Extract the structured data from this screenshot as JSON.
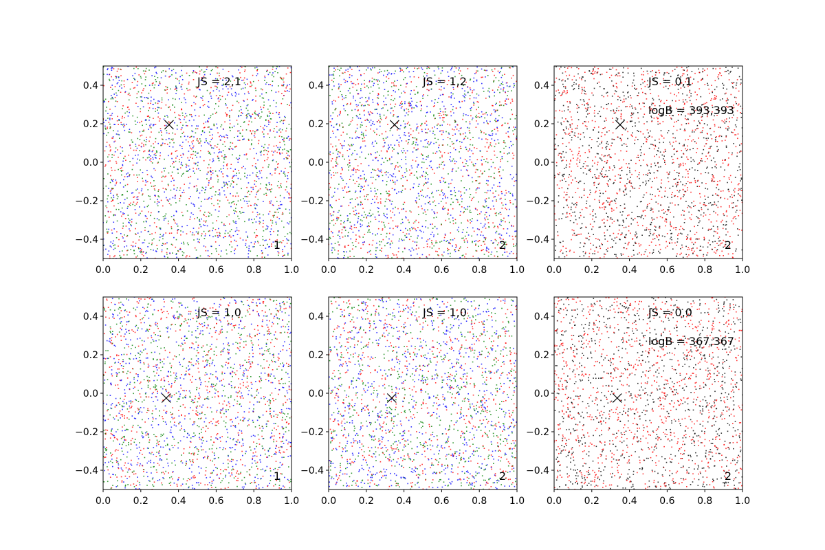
{
  "colors": {
    "blue": "#0000ff",
    "green": "#008000",
    "red": "#ff0000",
    "black": "#000000"
  },
  "chart_data": [
    {
      "type": "scatter",
      "xlim": [
        0,
        1
      ],
      "ylim": [
        -0.5,
        0.5
      ],
      "x_ticks": [
        "0.0",
        "0.2",
        "0.4",
        "0.6",
        "0.8",
        "1.0"
      ],
      "y_ticks": [
        "-0.4",
        "-0.2",
        "0.0",
        "0.2",
        "0.4"
      ],
      "text_js": "JS = 2,1",
      "text_logb": "",
      "corner_label": "1",
      "marker": {
        "x": 0.35,
        "y": 0.195
      },
      "point_colors": [
        "blue",
        "green",
        "red"
      ],
      "point_count": 2200,
      "seed": 11
    },
    {
      "type": "scatter",
      "xlim": [
        0,
        1
      ],
      "ylim": [
        -0.5,
        0.5
      ],
      "x_ticks": [
        "0.0",
        "0.2",
        "0.4",
        "0.6",
        "0.8",
        "1.0"
      ],
      "y_ticks": [
        "-0.4",
        "-0.2",
        "0.0",
        "0.2",
        "0.4"
      ],
      "text_js": "JS = 1,2",
      "text_logb": "",
      "corner_label": "2",
      "marker": {
        "x": 0.35,
        "y": 0.195
      },
      "point_colors": [
        "blue",
        "green",
        "red"
      ],
      "point_count": 2200,
      "seed": 23
    },
    {
      "type": "scatter",
      "xlim": [
        0,
        1
      ],
      "ylim": [
        -0.5,
        0.5
      ],
      "x_ticks": [
        "0.0",
        "0.2",
        "0.4",
        "0.6",
        "0.8",
        "1.0"
      ],
      "y_ticks": [
        "-0.4",
        "-0.2",
        "0.0",
        "0.2",
        "0.4"
      ],
      "text_js": "JS = 0,1",
      "text_logb": "logB = 393,393",
      "corner_label": "2",
      "marker": {
        "x": 0.35,
        "y": 0.195
      },
      "point_colors": [
        "red",
        "black"
      ],
      "point_count": 2000,
      "seed": 37
    },
    {
      "type": "scatter",
      "xlim": [
        0,
        1
      ],
      "ylim": [
        -0.5,
        0.5
      ],
      "x_ticks": [
        "0.0",
        "0.2",
        "0.4",
        "0.6",
        "0.8",
        "1.0"
      ],
      "y_ticks": [
        "-0.4",
        "-0.2",
        "0.0",
        "0.2",
        "0.4"
      ],
      "text_js": "JS = 1,0",
      "text_logb": "",
      "corner_label": "1",
      "marker": {
        "x": 0.335,
        "y": -0.025
      },
      "point_colors": [
        "blue",
        "green",
        "red"
      ],
      "point_count": 2200,
      "seed": 41
    },
    {
      "type": "scatter",
      "xlim": [
        0,
        1
      ],
      "ylim": [
        -0.5,
        0.5
      ],
      "x_ticks": [
        "0.0",
        "0.2",
        "0.4",
        "0.6",
        "0.8",
        "1.0"
      ],
      "y_ticks": [
        "-0.4",
        "-0.2",
        "0.0",
        "0.2",
        "0.4"
      ],
      "text_js": "JS = 1,0",
      "text_logb": "",
      "corner_label": "2",
      "marker": {
        "x": 0.335,
        "y": -0.025
      },
      "point_colors": [
        "blue",
        "green",
        "red"
      ],
      "point_count": 2200,
      "seed": 53
    },
    {
      "type": "scatter",
      "xlim": [
        0,
        1
      ],
      "ylim": [
        -0.5,
        0.5
      ],
      "x_ticks": [
        "0.0",
        "0.2",
        "0.4",
        "0.6",
        "0.8",
        "1.0"
      ],
      "y_ticks": [
        "-0.4",
        "-0.2",
        "0.0",
        "0.2",
        "0.4"
      ],
      "text_js": "JS = 0,0",
      "text_logb": "logB = 367,367",
      "corner_label": "2",
      "marker": {
        "x": 0.335,
        "y": -0.025
      },
      "point_colors": [
        "red",
        "black"
      ],
      "point_count": 2000,
      "seed": 67
    }
  ]
}
